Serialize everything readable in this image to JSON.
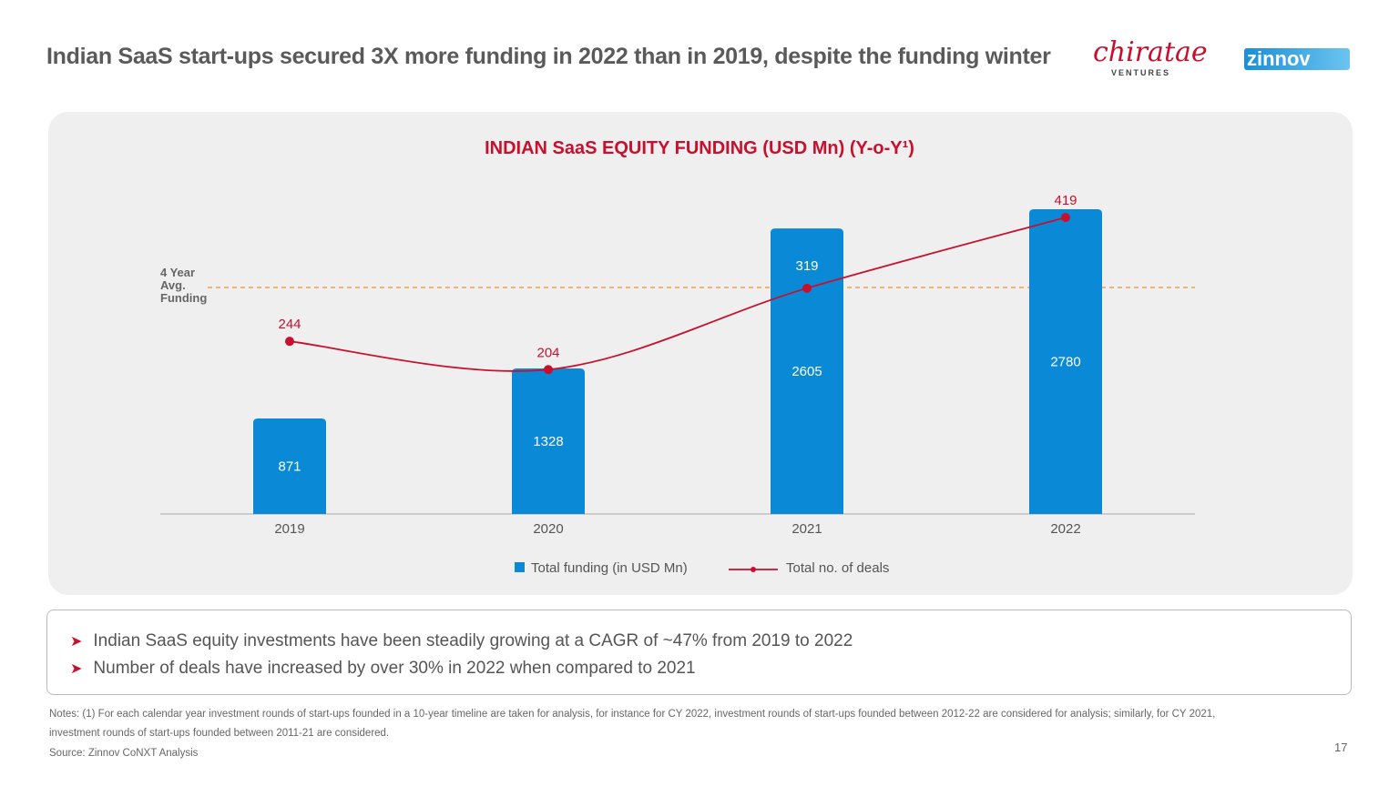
{
  "title": "Indian SaaS start-ups secured 3X more funding in 2022 than in 2019, despite the funding winter",
  "logos": {
    "chiratae": "chiratae",
    "chiratae_sub": "VENTURES",
    "zinnov": "zinnov"
  },
  "chart_data": {
    "type": "bar+line",
    "title": "INDIAN SaaS EQUITY FUNDING (USD Mn) (Y-o-Y¹)",
    "categories": [
      "2019",
      "2020",
      "2021",
      "2022"
    ],
    "series": [
      {
        "name": "Total funding (in USD Mn)",
        "type": "bar",
        "values": [
          871,
          1328,
          2605,
          2780
        ],
        "color": "#0a8ad6"
      },
      {
        "name": "Total no. of deals",
        "type": "line",
        "values": [
          244,
          204,
          319,
          419
        ],
        "color": "#c8102e"
      }
    ],
    "reference_line": {
      "label": "4 Year Avg. Funding",
      "color": "#f0a04b",
      "style": "dashed"
    },
    "legend": "bottom-center"
  },
  "bullets": [
    "Indian SaaS equity investments have been steadily growing at a CAGR of ~47% from 2019 to 2022",
    "Number of deals have increased by over 30% in 2022 when compared to 2021"
  ],
  "notes": [
    "Notes: (1) For each calendar year investment rounds of start-ups founded in a 10-year timeline are taken for analysis, for instance for CY 2022, investment rounds of start-ups founded between 2012-22 are considered for analysis; similarly, for CY 2021,",
    "investment rounds of start-ups founded between 2011-21 are considered."
  ],
  "source": "Source: Zinnov CoNXT Analysis",
  "page_number": "17"
}
